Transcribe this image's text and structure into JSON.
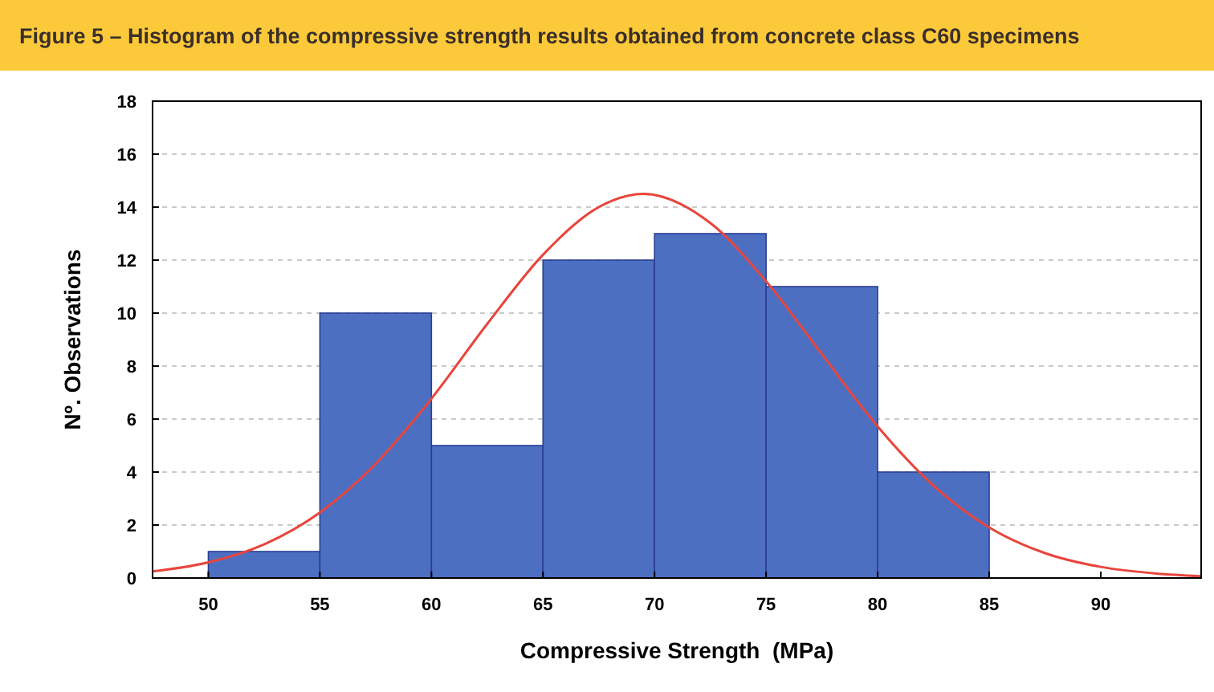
{
  "chart_data": {
    "type": "histogram",
    "title": "Figure 5 – Histogram of the compressive strength results obtained from concrete class C60 specimens",
    "xlabel": "Compressive Strength  (MPa)",
    "ylabel": "Nº. Observations",
    "bins": [
      50,
      55,
      60,
      65,
      70,
      75,
      80,
      85
    ],
    "series": [
      {
        "values": [
          1,
          10,
          5,
          12,
          13,
          11,
          4
        ],
        "color": "#4d6fc2"
      },
      {
        "type": "line",
        "color": "#e8453c",
        "x": [
          47.5,
          50,
          52.5,
          55,
          57.5,
          60,
          62.5,
          65,
          67.5,
          69.5,
          72.5,
          75,
          77.5,
          80,
          82.5,
          85,
          87.5,
          90,
          92.5,
          94.5
        ],
        "values": [
          0.25,
          0.59,
          1.27,
          2.47,
          4.31,
          6.77,
          9.59,
          12.2,
          14.0,
          14.5,
          13.4,
          11.2,
          8.45,
          5.72,
          3.49,
          1.91,
          0.94,
          0.42,
          0.17,
          0.07
        ]
      }
    ],
    "xlim": [
      47.5,
      94.5
    ],
    "xticks": [
      50,
      55,
      60,
      65,
      70,
      75,
      80,
      85,
      90
    ],
    "ylim": [
      0,
      18
    ],
    "yticks": [
      0,
      2,
      4,
      6,
      8,
      10,
      12,
      14,
      16,
      18
    ],
    "grid": "y",
    "marker": "none",
    "line_style": "solid"
  }
}
